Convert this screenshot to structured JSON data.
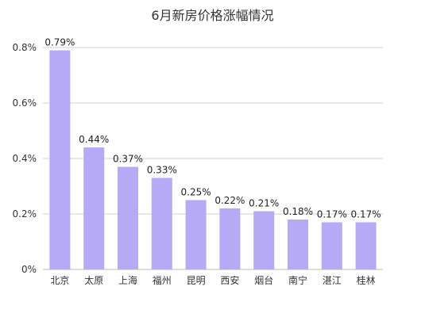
{
  "chart_data": {
    "type": "bar",
    "title": "6月新房价格涨幅情况",
    "categories": [
      "北京",
      "太原",
      "上海",
      "福州",
      "昆明",
      "西安",
      "烟台",
      "南宁",
      "湛江",
      "桂林"
    ],
    "series": [
      {
        "values": [
          0.79,
          0.44,
          0.37,
          0.33,
          0.25,
          0.22,
          0.21,
          0.18,
          0.17,
          0.17
        ],
        "labels": [
          "0.79%",
          "0.44%",
          "0.37%",
          "0.33%",
          "0.25%",
          "0.22%",
          "0.21%",
          "0.18%",
          "0.17%",
          "0.17%"
        ],
        "color": "#b6aaf7"
      }
    ],
    "ylim": [
      0,
      0.8
    ],
    "yticks": [
      0,
      0.2,
      0.4,
      0.6,
      0.8
    ],
    "ytick_labels": [
      "0%",
      "0.2%",
      "0.4%",
      "0.6%",
      "0.8%"
    ],
    "grid": true,
    "legend": false,
    "xlabel": "",
    "ylabel": ""
  }
}
